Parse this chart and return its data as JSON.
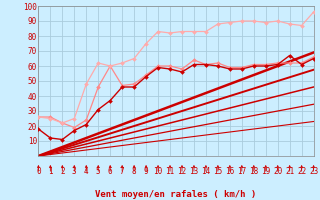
{
  "xlabel": "Vent moyen/en rafales ( km/h )",
  "bg_color": "#cceeff",
  "grid_color": "#aaccdd",
  "xlim": [
    0,
    23
  ],
  "ylim": [
    0,
    100
  ],
  "xticks": [
    0,
    1,
    2,
    3,
    4,
    5,
    6,
    7,
    8,
    9,
    10,
    11,
    12,
    13,
    14,
    15,
    16,
    17,
    18,
    19,
    20,
    21,
    22,
    23
  ],
  "yticks": [
    10,
    20,
    30,
    40,
    50,
    60,
    70,
    80,
    90,
    100
  ],
  "series": [
    {
      "x": [
        0,
        1,
        2,
        3,
        4,
        5,
        6,
        7,
        8,
        9,
        10,
        11,
        12,
        13,
        14,
        15,
        16,
        17,
        18,
        19,
        20,
        21,
        22,
        23
      ],
      "y": [
        18,
        12,
        11,
        17,
        21,
        31,
        37,
        46,
        46,
        53,
        59,
        58,
        56,
        61,
        61,
        60,
        58,
        58,
        60,
        60,
        61,
        67,
        61,
        65
      ],
      "color": "#cc0000",
      "lw": 1.0,
      "marker": "D",
      "ms": 2.0,
      "alpha": 1.0,
      "zorder": 4
    },
    {
      "x": [
        0,
        1,
        2,
        3,
        4,
        5,
        6,
        7,
        8,
        9,
        10,
        11,
        12,
        13,
        14,
        15,
        16,
        17,
        18,
        19,
        20,
        21,
        22,
        23
      ],
      "y": [
        26,
        26,
        22,
        19,
        24,
        46,
        60,
        47,
        48,
        54,
        60,
        60,
        58,
        64,
        61,
        62,
        59,
        59,
        61,
        61,
        62,
        62,
        62,
        66
      ],
      "color": "#ff8888",
      "lw": 0.9,
      "marker": "D",
      "ms": 2.0,
      "alpha": 1.0,
      "zorder": 3
    },
    {
      "x": [
        0,
        1,
        2,
        3,
        4,
        5,
        6,
        7,
        8,
        9,
        10,
        11,
        12,
        13,
        14,
        15,
        16,
        17,
        18,
        19,
        20,
        21,
        22,
        23
      ],
      "y": [
        26,
        25,
        22,
        25,
        48,
        62,
        60,
        62,
        65,
        75,
        83,
        82,
        83,
        83,
        83,
        88,
        89,
        90,
        90,
        89,
        90,
        88,
        87,
        96
      ],
      "color": "#ffaaaa",
      "lw": 0.9,
      "marker": "D",
      "ms": 2.0,
      "alpha": 1.0,
      "zorder": 3
    },
    {
      "x": [
        0,
        23
      ],
      "y": [
        0,
        69
      ],
      "color": "#cc0000",
      "lw": 1.8,
      "marker": null,
      "ms": 0,
      "alpha": 1.0,
      "zorder": 2
    },
    {
      "x": [
        0,
        23
      ],
      "y": [
        0,
        57.5
      ],
      "color": "#cc0000",
      "lw": 1.4,
      "marker": null,
      "ms": 0,
      "alpha": 1.0,
      "zorder": 2
    },
    {
      "x": [
        0,
        23
      ],
      "y": [
        0,
        46
      ],
      "color": "#cc0000",
      "lw": 1.1,
      "marker": null,
      "ms": 0,
      "alpha": 1.0,
      "zorder": 2
    },
    {
      "x": [
        0,
        23
      ],
      "y": [
        0,
        34.5
      ],
      "color": "#cc0000",
      "lw": 0.9,
      "marker": null,
      "ms": 0,
      "alpha": 1.0,
      "zorder": 2
    },
    {
      "x": [
        0,
        23
      ],
      "y": [
        0,
        23
      ],
      "color": "#cc0000",
      "lw": 0.8,
      "marker": null,
      "ms": 0,
      "alpha": 1.0,
      "zorder": 2
    }
  ],
  "arrow_color": "#cc0000",
  "xlabel_color": "#cc0000",
  "tick_color": "#cc0000",
  "label_fontsize": 6.5,
  "tick_fontsize": 5.5
}
